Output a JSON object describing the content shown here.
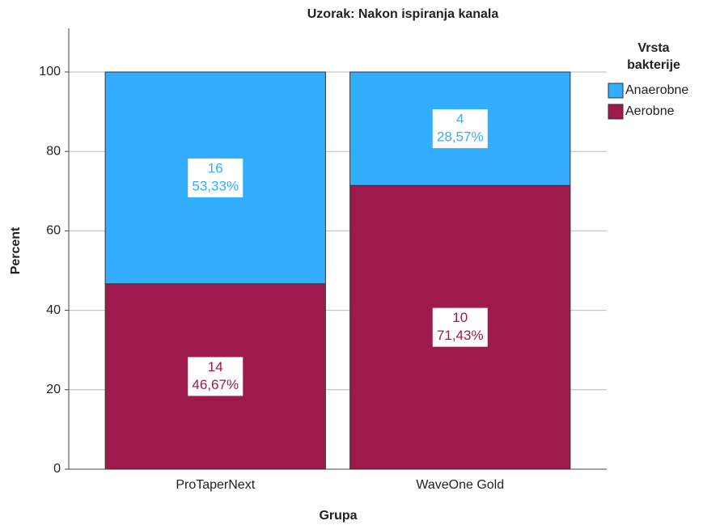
{
  "chart_data": {
    "type": "stacked_bar",
    "title": "Uzorak: Nakon ispiranja kanala",
    "x_label": "Grupa",
    "y_label": "Percent",
    "categories": [
      "ProTaperNext",
      "WaveOne Gold"
    ],
    "series": [
      {
        "name": "Aerobne",
        "color": "#9e1a4c",
        "values": [
          46.67,
          71.43
        ],
        "counts": [
          14,
          10
        ],
        "value_labels": [
          "46,67%",
          "71,43%"
        ]
      },
      {
        "name": "Anaerobne",
        "color": "#33adff",
        "values": [
          53.33,
          28.57
        ],
        "counts": [
          16,
          4
        ],
        "value_labels": [
          "53,33%",
          "28,57%"
        ]
      }
    ],
    "legend_title": [
      "Vrsta",
      "bakterije"
    ],
    "legend": "right",
    "ylim": [
      0,
      111
    ],
    "yticks": [
      0,
      20,
      40,
      60,
      80,
      100
    ],
    "grid": true
  }
}
